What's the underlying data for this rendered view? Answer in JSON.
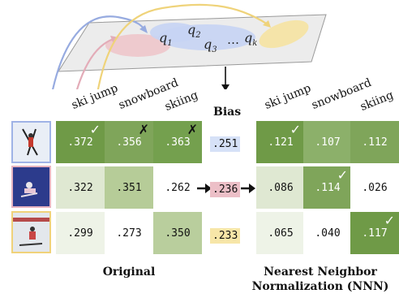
{
  "queries": {
    "q1": "q",
    "q1_sub": "1",
    "q2": "q",
    "q2_sub": "2",
    "q3": "q",
    "q3_sub": "3",
    "dots": "…",
    "qk": "q",
    "qk_sub": "k"
  },
  "columns": {
    "left": [
      "ski jump",
      "snowboard",
      "skiing"
    ],
    "right": [
      "ski jump",
      "snowboard",
      "skiing"
    ]
  },
  "bias": {
    "header": "Bias",
    "values": [
      ".251",
      ".236",
      ".233"
    ],
    "colors": [
      "#d6e1f7",
      "#ecbfc7",
      "#f7e6a8"
    ]
  },
  "original": {
    "rows": [
      [
        ".372",
        ".356",
        ".363"
      ],
      [
        ".322",
        ".351",
        ".262"
      ],
      [
        ".299",
        ".273",
        ".350"
      ]
    ],
    "marks": [
      [
        "✓",
        "✗",
        "✗"
      ],
      [
        "",
        "",
        ""
      ],
      [
        "",
        "",
        ""
      ]
    ]
  },
  "nnn": {
    "rows": [
      [
        ".121",
        ".107",
        ".112"
      ],
      [
        ".086",
        ".114",
        ".026"
      ],
      [
        ".065",
        ".040",
        ".117"
      ]
    ],
    "marks": [
      [
        "✓",
        "",
        ""
      ],
      [
        "",
        "✓",
        ""
      ],
      [
        "",
        "",
        "✓"
      ]
    ]
  },
  "captions": {
    "left": "Original",
    "right_line1": "Nearest Neighbor",
    "right_line2": "Normalization (NNN)"
  },
  "colors": {
    "thumb_border_1": "#9fb3e6",
    "thumb_border_2": "#e6b3c0",
    "thumb_border_3": "#f0d27a",
    "green_dark": "#6f9a47",
    "green_mid": "#a7c184",
    "green_light": "#dfe8d2",
    "green_pale": "#eef3e7"
  }
}
